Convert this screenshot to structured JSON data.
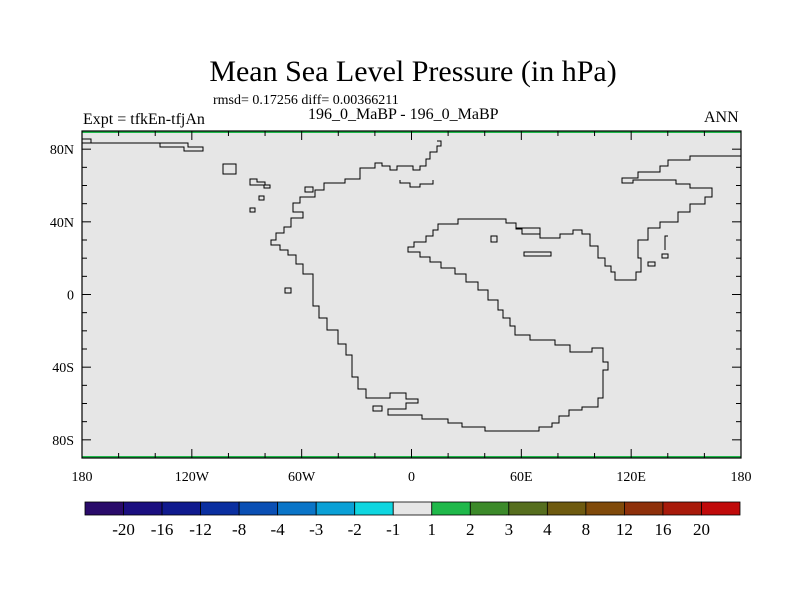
{
  "header": {
    "title": "Mean Sea Level Pressure (in hPa)",
    "stats": "rmsd= 0.17256 diff= 0.00366211",
    "left_label": "Expt = tfkEn-tfjAn",
    "center_label": "196_0_MaBP - 196_0_MaBP",
    "right_label": "ANN"
  },
  "chart_data": {
    "type": "heatmap",
    "title": "Mean Sea Level Pressure (in hPa)",
    "field_value": 0,
    "field_color": "#e6e6e6",
    "xlim": [
      -180,
      180
    ],
    "ylim": [
      -90,
      90
    ],
    "x_ticks": [
      {
        "value": -180,
        "label": "180"
      },
      {
        "value": -120,
        "label": "120W"
      },
      {
        "value": -60,
        "label": "60W"
      },
      {
        "value": 0,
        "label": "0"
      },
      {
        "value": 60,
        "label": "60E"
      },
      {
        "value": 120,
        "label": "120E"
      },
      {
        "value": 180,
        "label": "180"
      }
    ],
    "y_ticks": [
      {
        "value": 80,
        "label": "80N"
      },
      {
        "value": 40,
        "label": "40N"
      },
      {
        "value": 0,
        "label": "0"
      },
      {
        "value": -40,
        "label": "40S"
      },
      {
        "value": -80,
        "label": "80S"
      }
    ],
    "colorbar": {
      "colors": [
        "#2a0b6a",
        "#1b0f80",
        "#101a8e",
        "#0a2fa0",
        "#0a4fb4",
        "#0a75c8",
        "#0aa0d6",
        "#0fd6e0",
        "#e6e6e6",
        "#1fb84a",
        "#3c8a2a",
        "#566e1e",
        "#6e5a10",
        "#804a0a",
        "#8e300a",
        "#a81a0a",
        "#c00a0a"
      ],
      "labels": [
        "-20",
        "-16",
        "-12",
        "-8",
        "-4",
        "-3",
        "-2",
        "-1",
        "1",
        "2",
        "3",
        "4",
        "8",
        "12",
        "16",
        "20"
      ]
    }
  }
}
